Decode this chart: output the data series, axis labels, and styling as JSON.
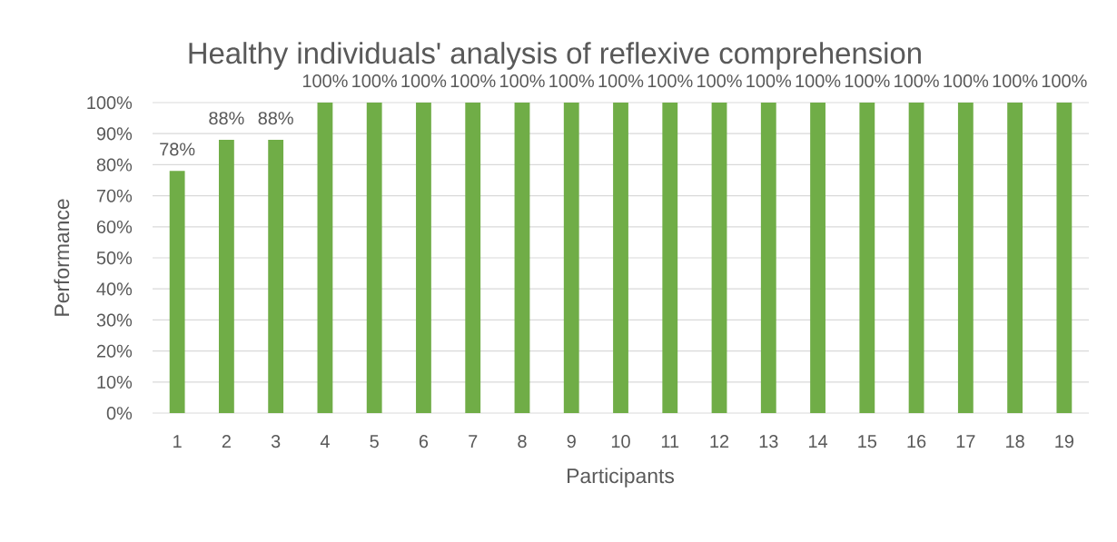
{
  "chart_data": {
    "type": "bar",
    "title": "Healthy individuals' analysis of reflexive comprehension",
    "xlabel": "Participants",
    "ylabel": "Performance",
    "categories": [
      "1",
      "2",
      "3",
      "4",
      "5",
      "6",
      "7",
      "8",
      "9",
      "10",
      "11",
      "12",
      "13",
      "14",
      "15",
      "16",
      "17",
      "18",
      "19"
    ],
    "values": [
      78,
      88,
      88,
      100,
      100,
      100,
      100,
      100,
      100,
      100,
      100,
      100,
      100,
      100,
      100,
      100,
      100,
      100,
      100
    ],
    "value_labels": [
      "78%",
      "88%",
      "88%",
      "100%",
      "100%",
      "100%",
      "100%",
      "100%",
      "100%",
      "100%",
      "100%",
      "100%",
      "100%",
      "100%",
      "100%",
      "100%",
      "100%",
      "100%",
      "100%"
    ],
    "color": "#70ad47",
    "ylim": [
      0,
      100
    ],
    "yticks": [
      {
        "value": 0,
        "label": "0%"
      },
      {
        "value": 10,
        "label": "10%"
      },
      {
        "value": 20,
        "label": "20%"
      },
      {
        "value": 30,
        "label": "30%"
      },
      {
        "value": 40,
        "label": "40%"
      },
      {
        "value": 50,
        "label": "50%"
      },
      {
        "value": 60,
        "label": "60%"
      },
      {
        "value": 70,
        "label": "70%"
      },
      {
        "value": 80,
        "label": "80%"
      },
      {
        "value": 90,
        "label": "90%"
      },
      {
        "value": 100,
        "label": "100%"
      }
    ],
    "grid": "y"
  }
}
